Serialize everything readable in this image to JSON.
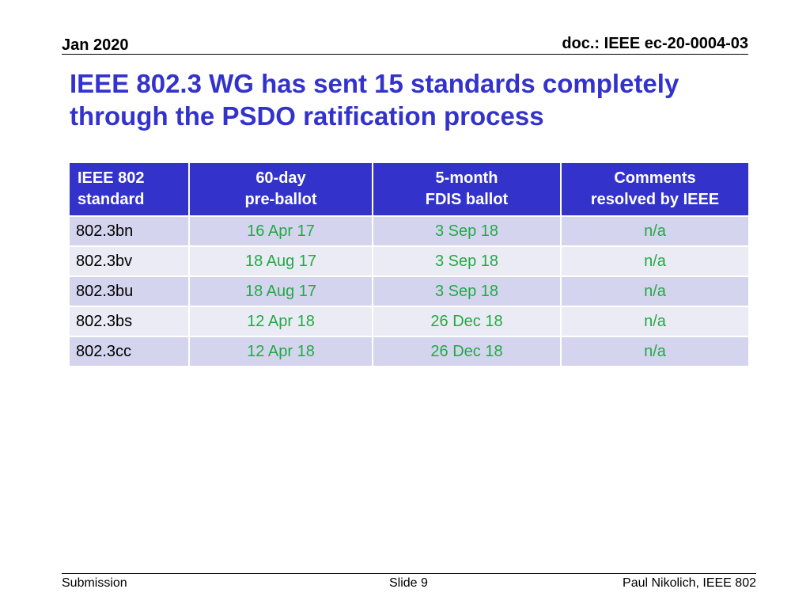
{
  "header": {
    "date": "Jan 2020",
    "doc_id": "doc.: IEEE ec-20-0004-03"
  },
  "title": "IEEE 802.3 WG has sent 15 standards completely through the PSDO ratification process",
  "table": {
    "headers": [
      [
        "IEEE 802",
        "standard"
      ],
      [
        "60-day",
        "pre-ballot"
      ],
      [
        "5-month",
        "FDIS ballot"
      ],
      [
        "Comments",
        "resolved by IEEE"
      ]
    ],
    "rows": [
      [
        "802.3bn",
        "16 Apr 17",
        "3 Sep 18",
        "n/a"
      ],
      [
        "802.3bv",
        "18 Aug 17",
        "3 Sep 18",
        "n/a"
      ],
      [
        "802.3bu",
        "18 Aug 17",
        "3 Sep 18",
        "n/a"
      ],
      [
        "802.3bs",
        "12 Apr 18",
        "26 Dec 18",
        "n/a"
      ],
      [
        "802.3cc",
        "12 Apr 18",
        "26 Dec 18",
        "n/a"
      ]
    ]
  },
  "footer": {
    "left": "Submission",
    "center": "Slide 9",
    "right": "Paul Nikolich, IEEE 802"
  },
  "colors": {
    "title": "#3333cc",
    "header_bg": "#3333cc",
    "date_text": "#22aa44",
    "row_dark": "#d4d4ee",
    "row_light": "#ebebf6"
  }
}
